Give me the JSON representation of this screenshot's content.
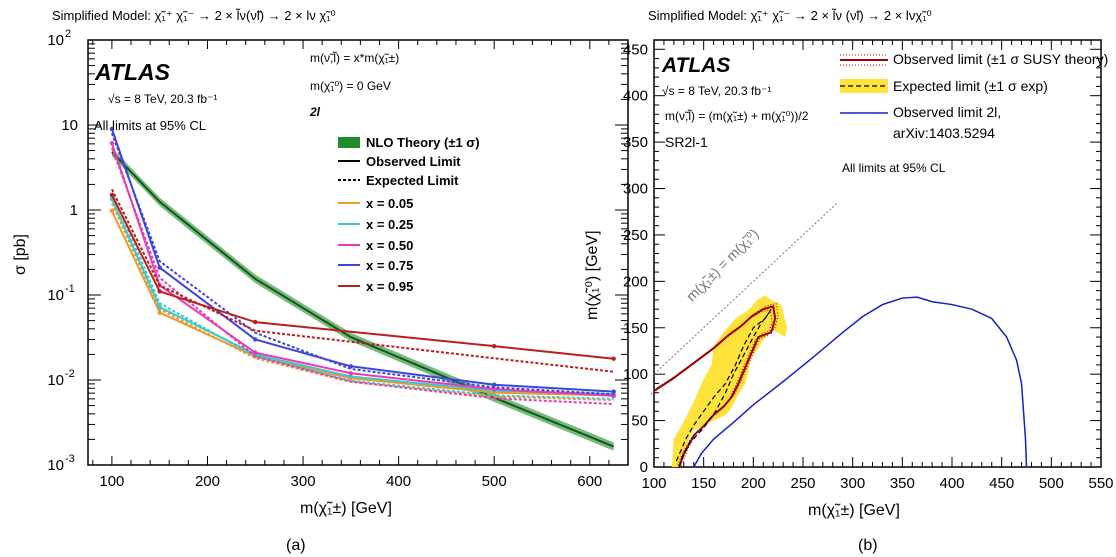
{
  "figure": {
    "label_a": "(a)",
    "label_b": "(b)"
  },
  "colors": {
    "x005": "#f0962e",
    "x025": "#3cc8c8",
    "x050": "#e83cb4",
    "x075": "#3c46dc",
    "x095": "#c01c1c",
    "theory": "#1e8c28",
    "observed_b": "#a00000",
    "band_b": "#ffe23a",
    "blue_b": "#1420c8"
  },
  "left": {
    "title": "Simplified Model: χ̃₁⁺ χ̃₁⁻ → 2 × l̃ν(ν̃l) → 2 × lν χ̃₁⁰",
    "atlas": "ATLAS",
    "energy": "√s = 8 TeV, 20.3 fb⁻¹",
    "cl": "All limits at 95% CL",
    "mass_rel1": "m(ν̃,l̃) = x*m(χ̃₁±)",
    "mass_rel2": "m(χ̃₁⁰) = 0 GeV",
    "channel": "2l",
    "xlabel": "m(χ̃₁±) [GeV]",
    "ylabel": "σ [pb]",
    "legend": {
      "theory": "NLO Theory (±1 σ)",
      "observed": "Observed Limit",
      "expected": "Expected Limit",
      "x005": "x = 0.05",
      "x025": "x = 0.25",
      "x050": "x = 0.50",
      "x075": "x = 0.75",
      "x095": "x = 0.95"
    }
  },
  "right": {
    "title": "Simplified Model: χ̃₁⁺ χ̃₁⁻ → 2 × l̃ν (ν̃l) → 2 × lνχ̃₁⁰",
    "atlas": "ATLAS",
    "energy": "√s = 8 TeV, 20.3 fb⁻¹",
    "mass_rel": "m(ν̃,l̃) = (m(χ̃₁±) + m(χ̃₁⁰))/2",
    "region": "SR2l-1",
    "cl": "All limits at 95% CL",
    "diag": "m(χ̃₁±) = m(χ̃₁⁰)",
    "xlabel": "m(χ̃₁±) [GeV]",
    "ylabel": "m(χ̃₁⁰) [GeV]",
    "legend": {
      "observed": "Observed limit (±1 σ SUSY theory)",
      "expected": "Expected limit (±1 σ exp)",
      "blue1": "Observed limit 2l,",
      "blue2": "arXiv:1403.5294"
    }
  },
  "chart_data": [
    {
      "type": "line",
      "title": "Simplified Model: χ̃₁⁺ χ̃₁⁻ → 2 × l̃ν(ν̃l) → 2 × lν χ̃₁⁰",
      "xlabel": "m(χ̃₁±) [GeV]",
      "ylabel": "σ [pb]",
      "xlim": [
        75,
        640
      ],
      "ylim": [
        0.001,
        100
      ],
      "xticks": [
        100,
        200,
        300,
        400,
        500,
        600
      ],
      "yticks": [
        "10^-3",
        "10^-2",
        "10^-1",
        "1",
        "10",
        "10^2"
      ],
      "yscale": "log",
      "legend_position": "right",
      "theory": {
        "name": "NLO Theory (±1 σ)",
        "x": [
          100,
          150,
          250,
          350,
          500,
          625
        ],
        "y": [
          4.8,
          1.25,
          0.155,
          0.032,
          0.0062,
          0.00165
        ]
      },
      "series": [
        {
          "name": "x = 0.05",
          "key": "x005",
          "observed": {
            "x": [
              100,
              150,
              250,
              350,
              500,
              625
            ],
            "y": [
              0.98,
              0.062,
              0.019,
              0.0105,
              0.0071,
              0.0066
            ]
          },
          "expected": {
            "x": [
              100,
              150,
              250,
              350,
              500,
              625
            ],
            "y": [
              1.2,
              0.068,
              0.018,
              0.0095,
              0.0064,
              0.0058
            ]
          }
        },
        {
          "name": "x = 0.25",
          "key": "x025",
          "observed": {
            "x": [
              100,
              150,
              250,
              350,
              500,
              625
            ],
            "y": [
              1.35,
              0.072,
              0.02,
              0.011,
              0.0075,
              0.0068
            ]
          },
          "expected": {
            "x": [
              100,
              150,
              250,
              350,
              500,
              625
            ],
            "y": [
              1.6,
              0.08,
              0.019,
              0.0098,
              0.0066,
              0.006
            ]
          }
        },
        {
          "name": "x = 0.50",
          "key": "x050",
          "observed": {
            "x": [
              100,
              150,
              250,
              350,
              500,
              625
            ],
            "y": [
              6.1,
              0.13,
              0.021,
              0.012,
              0.0078,
              0.0065
            ]
          },
          "expected": {
            "x": [
              100,
              150,
              250,
              350,
              500,
              625
            ],
            "y": [
              5.4,
              0.16,
              0.019,
              0.0096,
              0.0061,
              0.0052
            ]
          }
        },
        {
          "name": "x = 0.75",
          "key": "x075",
          "observed": {
            "x": [
              100,
              150,
              250,
              350,
              500,
              625
            ],
            "y": [
              9.0,
              0.21,
              0.03,
              0.0145,
              0.0088,
              0.0073
            ]
          },
          "expected": {
            "x": [
              100,
              150,
              250,
              350,
              500,
              625
            ],
            "y": [
              8.0,
              0.25,
              0.036,
              0.0135,
              0.0082,
              0.0068
            ]
          }
        },
        {
          "name": "x = 0.95",
          "key": "x095",
          "observed": {
            "x": [
              100,
              150,
              250,
              500,
              625
            ],
            "y": [
              1.5,
              0.11,
              0.048,
              0.025,
              0.0178
            ]
          },
          "expected": {
            "x": [
              100,
              150,
              250,
              500,
              625
            ],
            "y": [
              1.75,
              0.13,
              0.038,
              0.018,
              0.0125
            ]
          }
        }
      ]
    },
    {
      "type": "line",
      "title": "Simplified Model: χ̃₁⁺ χ̃₁⁻ → 2 × l̃ν (ν̃l) → 2 × lνχ̃₁⁰",
      "xlabel": "m(χ̃₁±) [GeV]",
      "ylabel": "m(χ̃₁⁰) [GeV]",
      "xlim": [
        100,
        550
      ],
      "ylim": [
        0,
        460
      ],
      "xticks": [
        100,
        150,
        200,
        250,
        300,
        350,
        400,
        450,
        500,
        550
      ],
      "yticks": [
        0,
        50,
        100,
        150,
        200,
        250,
        300,
        350,
        400,
        450
      ],
      "legend_position": "top-right",
      "series": [
        {
          "name": "Observed limit (±1 σ SUSY theory)",
          "x": [
            100,
            120,
            140,
            160,
            175,
            188,
            198,
            210,
            220,
            222,
            218,
            205,
            195,
            185,
            178,
            170,
            160,
            150,
            140,
            135,
            130,
            127,
            126
          ],
          "y": [
            82,
            96,
            112,
            128,
            142,
            152,
            162,
            170,
            173,
            160,
            145,
            140,
            115,
            90,
            75,
            65,
            56,
            44,
            34,
            24,
            14,
            5,
            0
          ]
        },
        {
          "name": "Expected limit (±1 σ exp)",
          "x": [
            125,
            128,
            135,
            150,
            162,
            172,
            180,
            190,
            200,
            208,
            215,
            218,
            212,
            200,
            190,
            182,
            172,
            160,
            150,
            140,
            132,
            126,
            122
          ],
          "y": [
            0,
            10,
            25,
            42,
            60,
            80,
            100,
            120,
            140,
            155,
            165,
            170,
            160,
            150,
            130,
            110,
            90,
            75,
            60,
            45,
            30,
            15,
            5
          ]
        },
        {
          "name": "Observed limit 2l, arXiv:1403.5294",
          "x": [
            140,
            148,
            160,
            180,
            200,
            230,
            260,
            290,
            310,
            330,
            350,
            365,
            380,
            400,
            420,
            440,
            455,
            465,
            470,
            472,
            474,
            475
          ],
          "y": [
            0,
            15,
            30,
            48,
            67,
            92,
            118,
            145,
            162,
            175,
            182,
            183,
            178,
            175,
            170,
            160,
            140,
            115,
            90,
            60,
            30,
            0
          ]
        }
      ],
      "band": {
        "name": "Expected limit ±1 σ exp",
        "x": [
          118,
          120,
          128,
          140,
          150,
          158,
          160,
          170,
          182,
          196,
          204,
          212,
          218,
          228,
          234,
          232,
          224,
          218,
          212,
          206,
          198,
          192,
          186,
          176,
          170,
          160,
          150,
          140,
          135,
          132,
          130,
          127,
          127
        ],
        "y": [
          0,
          30,
          45,
          70,
          95,
          110,
          130,
          145,
          160,
          170,
          180,
          185,
          180,
          175,
          150,
          140,
          145,
          150,
          140,
          130,
          118,
          90,
          80,
          60,
          55,
          50,
          45,
          40,
          30,
          20,
          10,
          5,
          0
        ]
      },
      "diagonal": {
        "x": [
          100,
          285
        ],
        "y": [
          100,
          285
        ]
      }
    }
  ]
}
